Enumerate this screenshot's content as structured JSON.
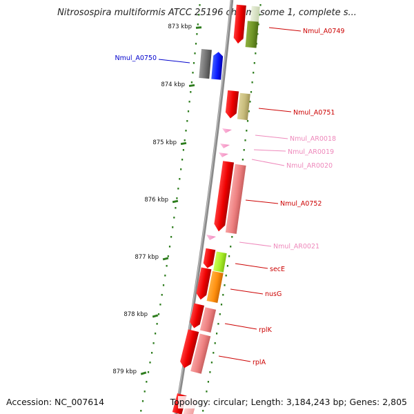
{
  "title": "Nitrosospira multiformis ATCC 25196 chromosome 1, complete s...",
  "footer": {
    "accession": "Accession: NC_007614",
    "summary": "Topology: circular; Length: 3,184,243 bp; Genes: 2,805"
  },
  "colors": {
    "backbone": "#8a8a8a",
    "axis_ticks": "#2e7d1e",
    "cds_forward": "#e60000",
    "cds_reverse_label": "#0000cc",
    "rna": "#ff99cc"
  },
  "axis_ticks": [
    {
      "label": "873 kbp"
    },
    {
      "label": "874 kbp"
    },
    {
      "label": "875 kbp"
    },
    {
      "label": "876 kbp"
    },
    {
      "label": "877 kbp"
    },
    {
      "label": "878 kbp"
    },
    {
      "label": "879 kbp"
    }
  ],
  "genes": [
    {
      "id": "Nmul_A0749",
      "label": "Nmul_A0749",
      "label_color": "#cc0000"
    },
    {
      "id": "Nmul_A0750",
      "label": "Nmul_A0750",
      "label_color": "#0000cc"
    },
    {
      "id": "Nmul_A0751",
      "label": "Nmul_A0751",
      "label_color": "#cc0000"
    },
    {
      "id": "Nmul_AR0018",
      "label": "Nmul_AR0018",
      "label_color": "#ee88bb"
    },
    {
      "id": "Nmul_AR0019",
      "label": "Nmul_AR0019",
      "label_color": "#ee88bb"
    },
    {
      "id": "Nmul_AR0020",
      "label": "Nmul_AR0020",
      "label_color": "#ee88bb"
    },
    {
      "id": "Nmul_A0752",
      "label": "Nmul_A0752",
      "label_color": "#cc0000"
    },
    {
      "id": "Nmul_AR0021",
      "label": "Nmul_AR0021",
      "label_color": "#ee88bb"
    },
    {
      "id": "secE",
      "label": "secE",
      "label_color": "#cc0000"
    },
    {
      "id": "nusG",
      "label": "nusG",
      "label_color": "#cc0000"
    },
    {
      "id": "rplK",
      "label": "rplK",
      "label_color": "#cc0000"
    },
    {
      "id": "rplA",
      "label": "rplA",
      "label_color": "#cc0000"
    }
  ]
}
